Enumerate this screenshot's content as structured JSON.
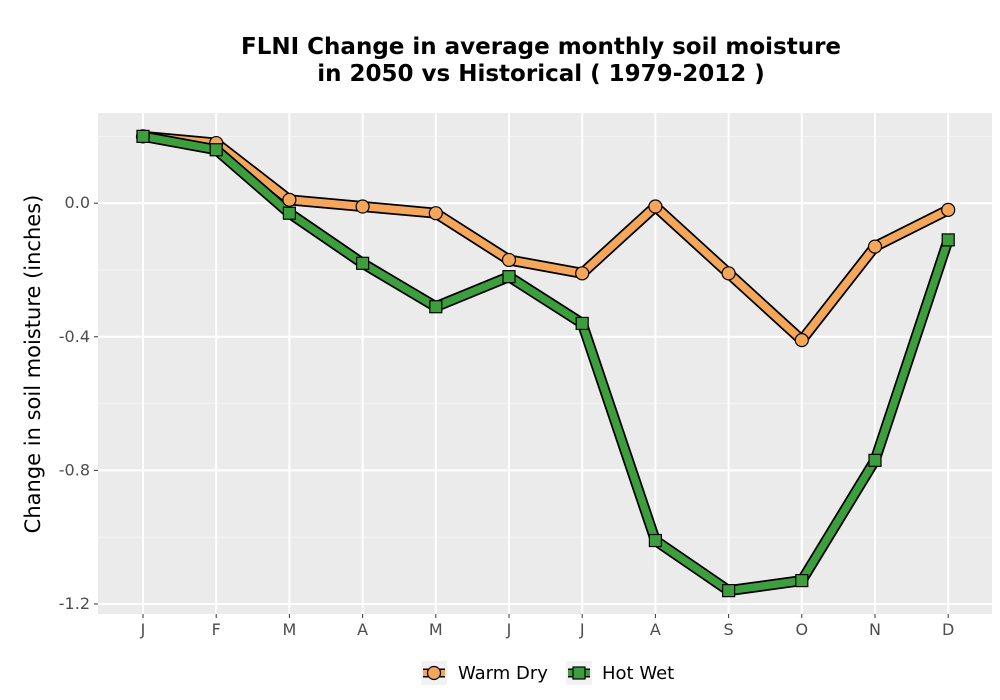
{
  "chart_data": {
    "type": "line",
    "title_lines": [
      "FLNI  Change in average monthly soil moisture",
      "in 2050 vs Historical ( 1979-2012 )"
    ],
    "xlabel": "",
    "ylabel": "Change in soil moisture (inches)",
    "categories": [
      "J",
      "F",
      "M",
      "A",
      "M",
      "J",
      "J",
      "A",
      "S",
      "O",
      "N",
      "D"
    ],
    "ylim": [
      -1.23,
      0.27
    ],
    "yticks": [
      0.0,
      -0.4,
      -0.8,
      -1.2
    ],
    "ytick_labels": [
      "0.0",
      "-0.4",
      "-0.8",
      "-1.2"
    ],
    "grid": true,
    "legend_position": "bottom",
    "series": [
      {
        "name": "Warm Dry",
        "marker": "circle",
        "color": "#f4a65a",
        "values": [
          0.2,
          0.18,
          0.01,
          -0.01,
          -0.03,
          -0.17,
          -0.21,
          -0.01,
          -0.21,
          -0.41,
          -0.13,
          -0.02
        ]
      },
      {
        "name": "Hot Wet",
        "marker": "square",
        "color": "#3d9e3d",
        "values": [
          0.2,
          0.16,
          -0.03,
          -0.18,
          -0.31,
          -0.22,
          -0.36,
          -1.01,
          -1.16,
          -1.13,
          -0.77,
          -0.11
        ]
      }
    ]
  },
  "colors": {
    "panel": "#ebebeb",
    "grid_major": "#ffffff",
    "grid_minor": "#f5f5f5",
    "outline": "#000000"
  }
}
